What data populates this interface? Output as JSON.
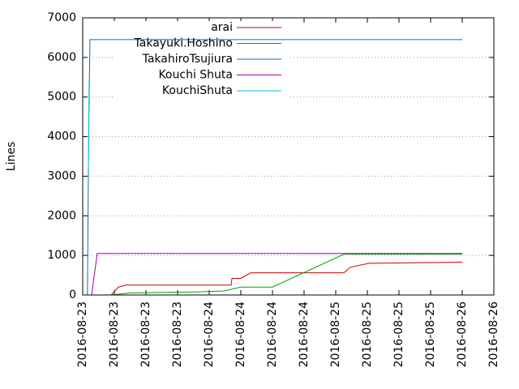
{
  "chart_data": {
    "type": "line",
    "ylabel": "Lines",
    "xlim": [
      0,
      13
    ],
    "xticks": [
      {
        "value": 0,
        "label": "2016-08-23"
      },
      {
        "value": 1,
        "label": "2016-08-23"
      },
      {
        "value": 2,
        "label": "2016-08-23"
      },
      {
        "value": 3,
        "label": "2016-08-23"
      },
      {
        "value": 4,
        "label": "2016-08-24"
      },
      {
        "value": 5,
        "label": "2016-08-24"
      },
      {
        "value": 6,
        "label": "2016-08-24"
      },
      {
        "value": 7,
        "label": "2016-08-24"
      },
      {
        "value": 8,
        "label": "2016-08-25"
      },
      {
        "value": 9,
        "label": "2016-08-25"
      },
      {
        "value": 10,
        "label": "2016-08-25"
      },
      {
        "value": 11,
        "label": "2016-08-25"
      },
      {
        "value": 12,
        "label": "2016-08-26"
      },
      {
        "value": 13,
        "label": "2016-08-26"
      }
    ],
    "ylim": [
      0,
      7000
    ],
    "yticks": [
      0,
      1000,
      2000,
      3000,
      4000,
      5000,
      6000,
      7000
    ],
    "grid": true,
    "legend": "top",
    "series": [
      {
        "name": "arai",
        "color": "#cc0000",
        "x": [
          0.9,
          1.13,
          1.36,
          4.69,
          4.72,
          5.0,
          5.31,
          8.26,
          8.46,
          9.05,
          12.0
        ],
        "values": [
          0,
          200,
          250,
          250,
          420,
          420,
          560,
          560,
          700,
          800,
          830
        ]
      },
      {
        "name": "Takayuki.Hoshino",
        "color": "#00a000",
        "x": [
          0.9,
          1.5,
          3.67,
          4.46,
          5.0,
          6.0,
          8.26,
          12.0
        ],
        "values": [
          0,
          50,
          80,
          100,
          200,
          200,
          1030,
          1030
        ]
      },
      {
        "name": "TakahiroTsujiura",
        "color": "#0070b8",
        "x": [
          0.15,
          0.18,
          0.21,
          0.23,
          12.0
        ],
        "values": [
          0,
          3250,
          5400,
          6450,
          6450
        ]
      },
      {
        "name": "Kouchi Shuta",
        "color": "#a000a0",
        "x": [
          0.28,
          0.46,
          12.0
        ],
        "values": [
          0,
          1050,
          1050
        ]
      },
      {
        "name": "KouchiShuta",
        "color": "#00c0e0",
        "x": [
          0.18,
          0.2
        ],
        "values": [
          3200,
          5400
        ]
      }
    ]
  }
}
